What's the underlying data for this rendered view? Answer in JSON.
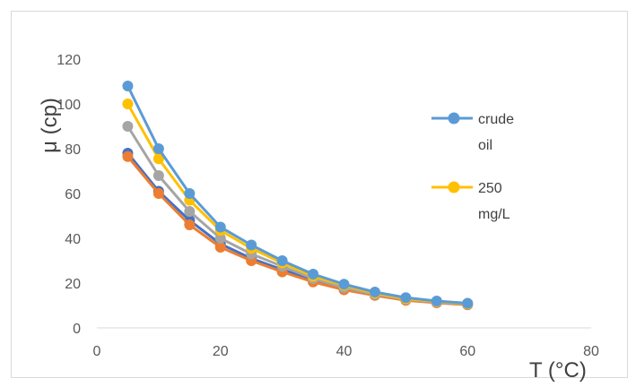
{
  "chart_data": {
    "type": "line",
    "title": "",
    "xlabel": "T (°C)",
    "ylabel": "μ (cp)",
    "xlim": [
      0,
      80
    ],
    "ylim": [
      0,
      120
    ],
    "xticks": [
      0,
      20,
      40,
      60,
      80
    ],
    "yticks": [
      0,
      20,
      40,
      60,
      80,
      100,
      120
    ],
    "grid": false,
    "legend_position": "right",
    "x": [
      5,
      10,
      15,
      20,
      25,
      30,
      35,
      40,
      45,
      50,
      55,
      60
    ],
    "series": [
      {
        "name": "crude oil",
        "color": "#5b9bd5",
        "values": [
          108,
          80,
          60,
          45,
          37,
          30,
          24,
          19.5,
          16,
          13.5,
          12,
          11
        ]
      },
      {
        "name": "250 mg/L",
        "color": "#ffc000",
        "values": [
          100,
          75.5,
          57,
          43.5,
          35.5,
          29,
          23,
          19,
          15.5,
          13,
          11.8,
          10.8
        ]
      },
      {
        "color": "#a5a5a5",
        "values": [
          90,
          68,
          52,
          40,
          33,
          27.5,
          22,
          18,
          15,
          12.8,
          11.5,
          10.6
        ]
      },
      {
        "color": "#ed7d31",
        "values": [
          76.5,
          60,
          46,
          36,
          30,
          25,
          20.5,
          17,
          14.5,
          12.3,
          11.2,
          10.3
        ]
      },
      {
        "color": "#4472c4",
        "values": [
          78,
          61,
          48,
          37.5,
          31,
          26,
          21.5,
          17.5,
          15,
          12.5,
          11.3,
          10.4
        ]
      }
    ]
  }
}
